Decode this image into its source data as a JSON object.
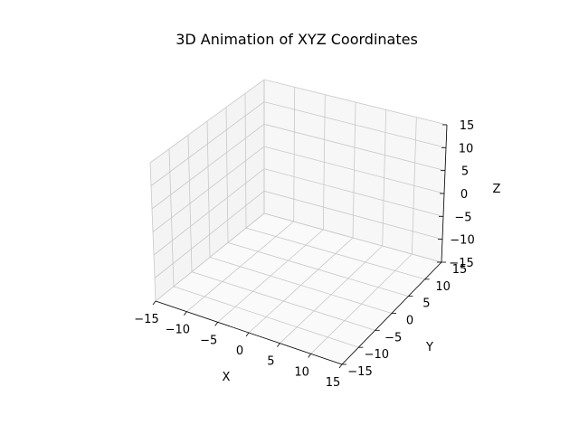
{
  "chart_data": {
    "type": "scatter",
    "projection": "3d",
    "title": "3D Animation of XYZ Coordinates",
    "xlabel": "X",
    "ylabel": "Y",
    "zlabel": "Z",
    "xlim": [
      -15,
      15
    ],
    "ylim": [
      -15,
      15
    ],
    "zlim": [
      -15,
      15
    ],
    "x_ticks": [
      "−15",
      "−10",
      "−5",
      "0",
      "5",
      "10",
      "15"
    ],
    "y_ticks": [
      "−15",
      "−10",
      "−5",
      "0",
      "5",
      "10",
      "15"
    ],
    "z_ticks": [
      "−15",
      "−10",
      "−5",
      "0",
      "5",
      "10",
      "15"
    ],
    "grid": true,
    "series": [],
    "colors": {
      "pane_left": "#e9e9e9",
      "pane_right": "#f0f0f0",
      "pane_floor": "#f5f5f5",
      "grid": "#c8c8c8",
      "axis": "#000000"
    }
  }
}
